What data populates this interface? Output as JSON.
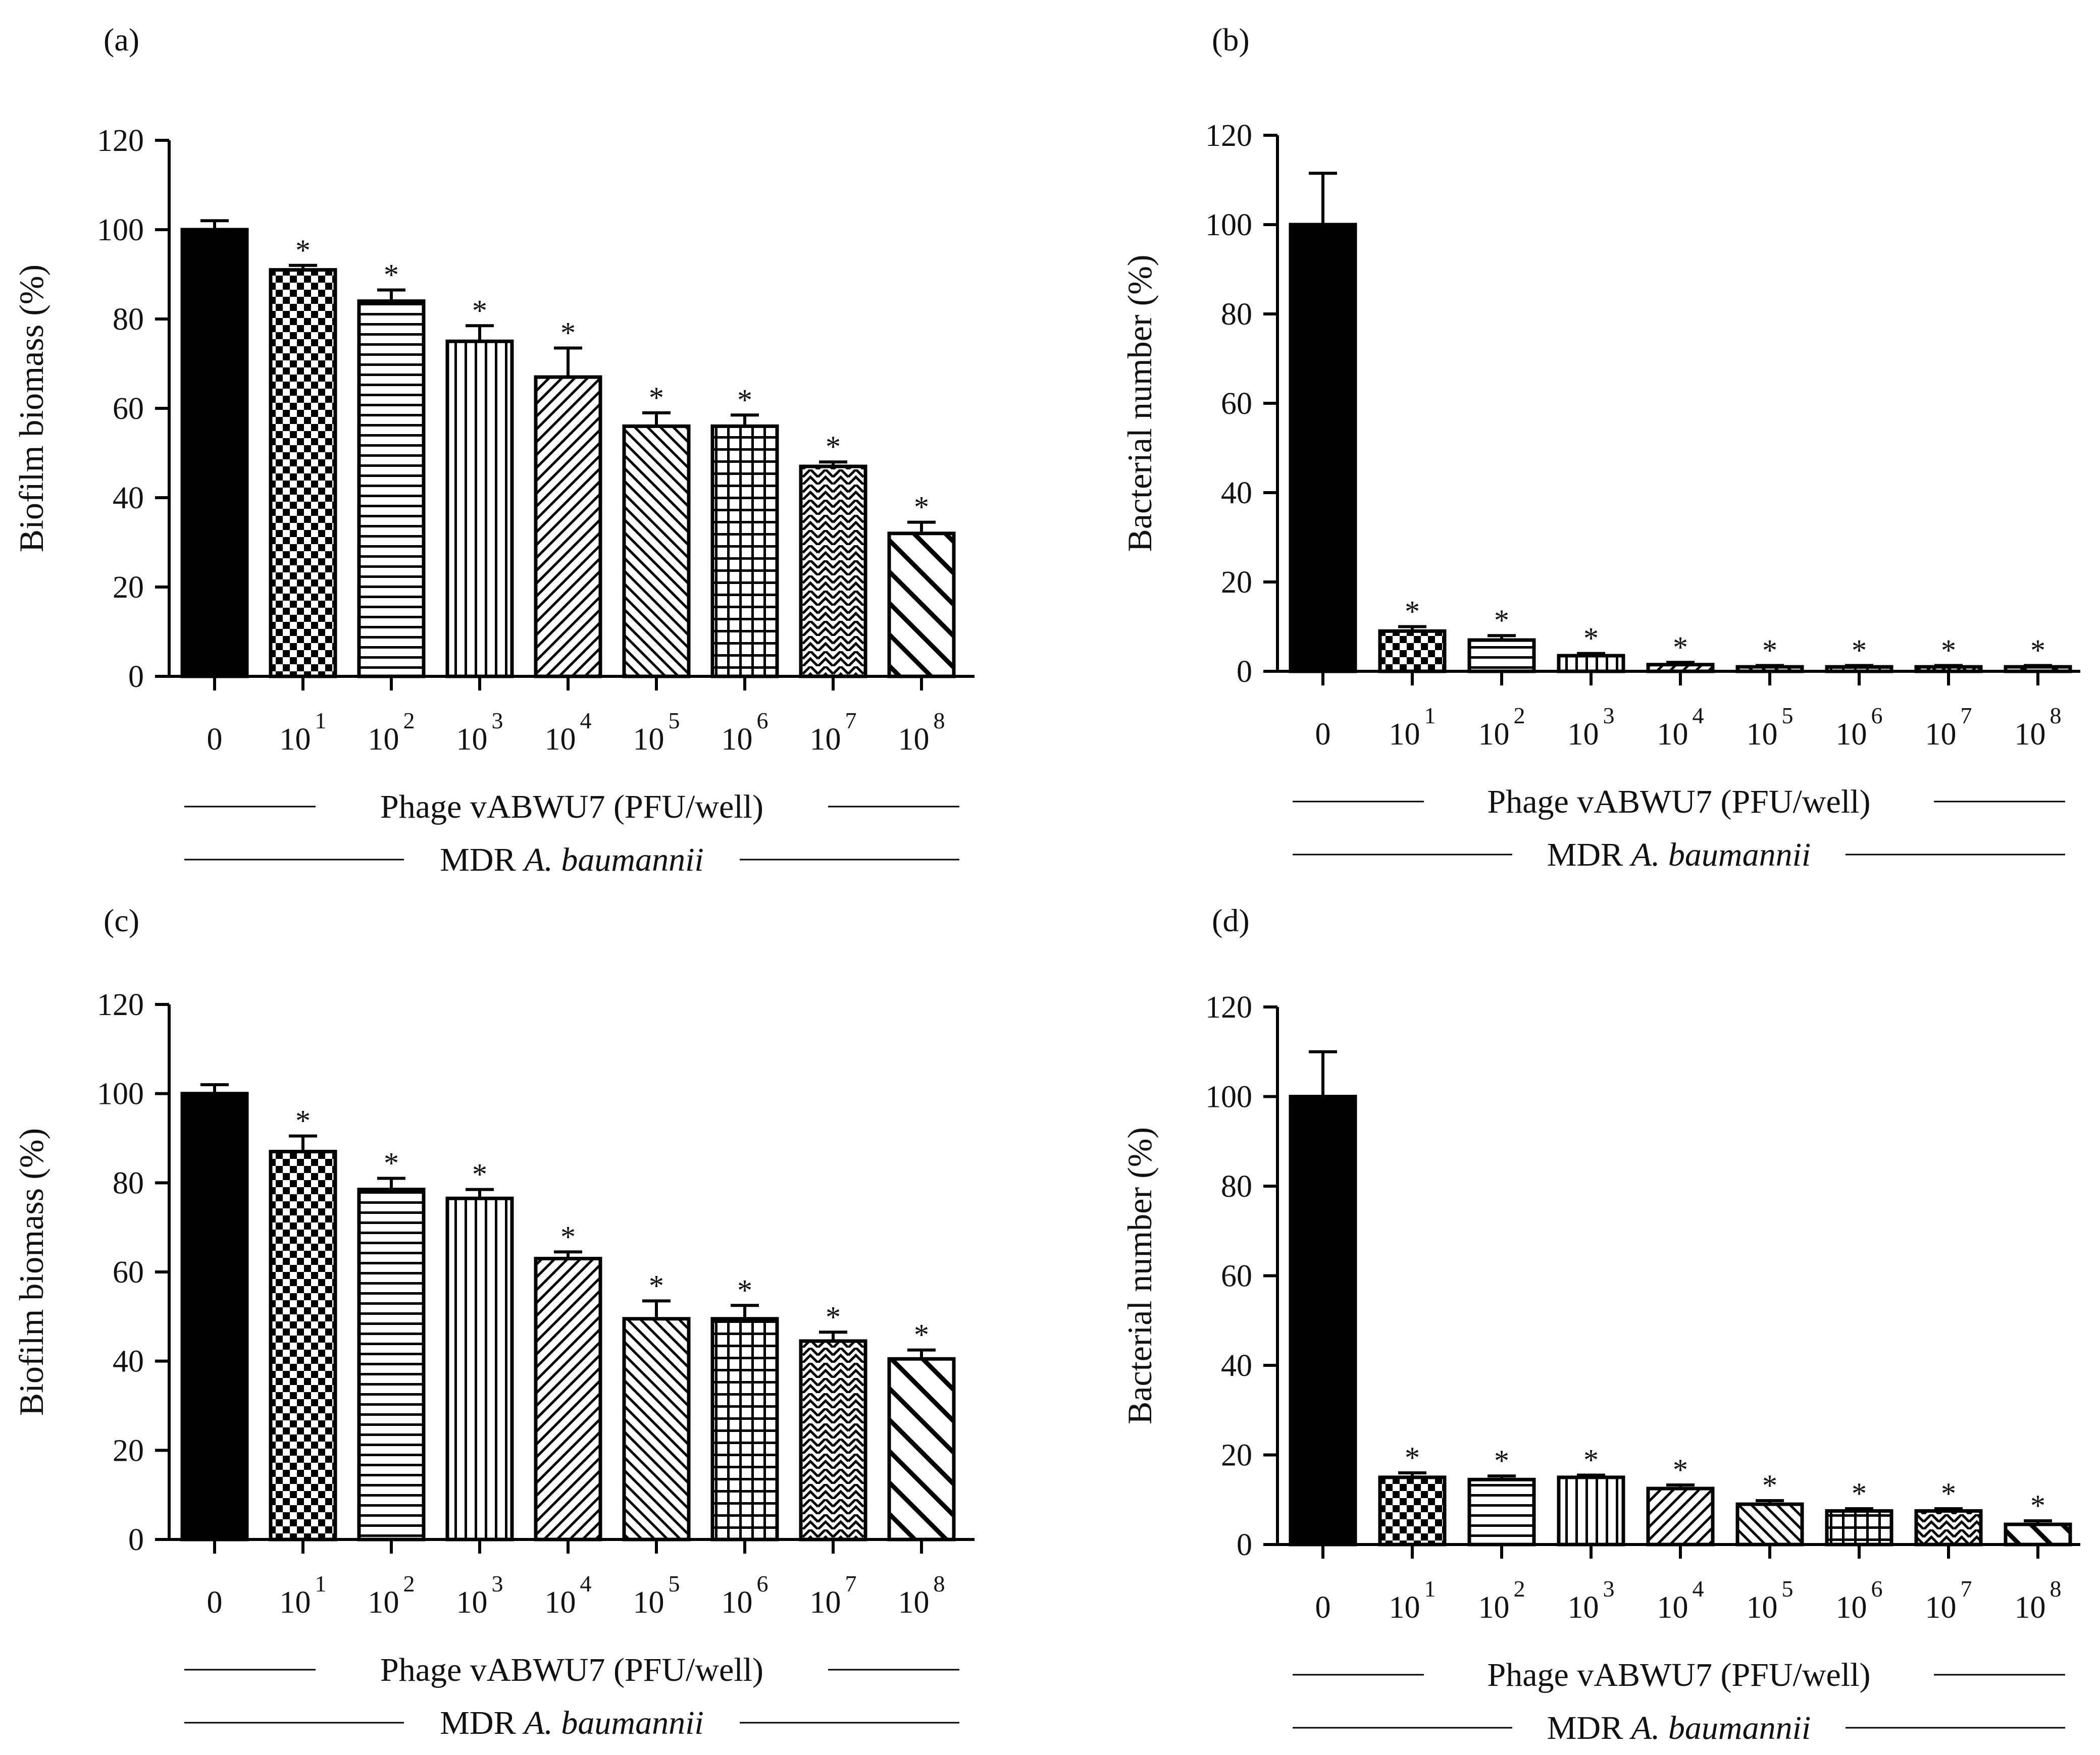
{
  "chart_data": [
    {
      "panel": "(a)",
      "type": "bar",
      "ylabel": "Biofilm biomass  (%)",
      "ylim": [
        0,
        120
      ],
      "yticks": [
        "0",
        "20",
        "40",
        "60",
        "80",
        "100",
        "120"
      ],
      "categories": [
        {
          "base": "0",
          "exp": ""
        },
        {
          "base": "10",
          "exp": "1"
        },
        {
          "base": "10",
          "exp": "2"
        },
        {
          "base": "10",
          "exp": "3"
        },
        {
          "base": "10",
          "exp": "4"
        },
        {
          "base": "10",
          "exp": "5"
        },
        {
          "base": "10",
          "exp": "6"
        },
        {
          "base": "10",
          "exp": "7"
        },
        {
          "base": "10",
          "exp": "8"
        }
      ],
      "values": [
        100,
        91,
        84,
        75,
        67,
        56,
        56,
        47,
        32
      ],
      "errors": [
        2,
        1,
        2.5,
        3.5,
        6.5,
        3,
        2.5,
        1,
        2.5
      ],
      "significance": [
        "",
        "*",
        "*",
        "*",
        "*",
        "*",
        "*",
        "*",
        "*"
      ],
      "fills": [
        "solid",
        "checker",
        "hlines",
        "vlines",
        "diag-fine",
        "diag-back",
        "grid",
        "weave",
        "diag-wide"
      ],
      "xlabel": "Phage vABWU7 (PFU/well)",
      "caption_prefix": "MDR ",
      "caption_italic": "A. baumannii"
    },
    {
      "panel": "(b)",
      "type": "bar",
      "ylabel": "Bacterial number (%)",
      "ylim": [
        0,
        120
      ],
      "yticks": [
        "0",
        "20",
        "40",
        "60",
        "80",
        "100",
        "120"
      ],
      "categories": [
        {
          "base": "0",
          "exp": ""
        },
        {
          "base": "10",
          "exp": "1"
        },
        {
          "base": "10",
          "exp": "2"
        },
        {
          "base": "10",
          "exp": "3"
        },
        {
          "base": "10",
          "exp": "4"
        },
        {
          "base": "10",
          "exp": "5"
        },
        {
          "base": "10",
          "exp": "6"
        },
        {
          "base": "10",
          "exp": "7"
        },
        {
          "base": "10",
          "exp": "8"
        }
      ],
      "values": [
        100,
        9,
        7,
        3.5,
        1.5,
        1,
        1,
        1,
        1
      ],
      "errors": [
        11.5,
        1,
        1,
        0.5,
        0.5,
        0.3,
        0.3,
        0.3,
        0.3
      ],
      "significance": [
        "",
        "*",
        "*",
        "*",
        "*",
        "*",
        "*",
        "*",
        "*"
      ],
      "fills": [
        "solid",
        "checker",
        "hlines",
        "vlines",
        "diag-fine",
        "diag-back",
        "grid",
        "weave",
        "diag-wide"
      ],
      "xlabel": "Phage vABWU7 (PFU/well)",
      "caption_prefix": "MDR ",
      "caption_italic": "A. baumannii"
    },
    {
      "panel": "(c)",
      "type": "bar",
      "ylabel": "Biofilm biomass (%)",
      "ylim": [
        0,
        120
      ],
      "yticks": [
        "0",
        "20",
        "40",
        "60",
        "80",
        "100",
        "120"
      ],
      "categories": [
        {
          "base": "0",
          "exp": ""
        },
        {
          "base": "10",
          "exp": "1"
        },
        {
          "base": "10",
          "exp": "2"
        },
        {
          "base": "10",
          "exp": "3"
        },
        {
          "base": "10",
          "exp": "4"
        },
        {
          "base": "10",
          "exp": "5"
        },
        {
          "base": "10",
          "exp": "6"
        },
        {
          "base": "10",
          "exp": "7"
        },
        {
          "base": "10",
          "exp": "8"
        }
      ],
      "values": [
        100,
        87,
        78.5,
        76.5,
        63,
        49.5,
        49.5,
        44.5,
        40.5
      ],
      "errors": [
        2,
        3.5,
        2.5,
        2,
        1.5,
        4,
        3,
        2,
        2
      ],
      "significance": [
        "",
        "*",
        "*",
        "*",
        "*",
        "*",
        "*",
        "*",
        "*"
      ],
      "fills": [
        "solid",
        "checker",
        "hlines",
        "vlines",
        "diag-fine",
        "diag-back",
        "grid",
        "weave",
        "diag-wide"
      ],
      "xlabel": "Phage vABWU7 (PFU/well)",
      "caption_prefix": "MDR ",
      "caption_italic": "A. baumannii"
    },
    {
      "panel": "(d)",
      "type": "bar",
      "ylabel": "Bacterial number (%)",
      "ylim": [
        0,
        120
      ],
      "yticks": [
        "0",
        "20",
        "40",
        "60",
        "80",
        "100",
        "120"
      ],
      "categories": [
        {
          "base": "0",
          "exp": ""
        },
        {
          "base": "10",
          "exp": "1"
        },
        {
          "base": "10",
          "exp": "2"
        },
        {
          "base": "10",
          "exp": "3"
        },
        {
          "base": "10",
          "exp": "4"
        },
        {
          "base": "10",
          "exp": "5"
        },
        {
          "base": "10",
          "exp": "6"
        },
        {
          "base": "10",
          "exp": "7"
        },
        {
          "base": "10",
          "exp": "8"
        }
      ],
      "values": [
        100,
        15,
        14.5,
        15,
        12.5,
        9,
        7.5,
        7.5,
        4.5
      ],
      "errors": [
        10,
        1,
        0.8,
        0.5,
        0.8,
        0.8,
        0.5,
        0.5,
        0.8
      ],
      "significance": [
        "",
        "*",
        "*",
        "*",
        "*",
        "*",
        "*",
        "*",
        "*"
      ],
      "fills": [
        "solid",
        "checker",
        "hlines",
        "vlines",
        "diag-fine",
        "diag-back",
        "grid",
        "weave",
        "diag-wide"
      ],
      "xlabel": "Phage vABWU7 (PFU/well)",
      "caption_prefix": "MDR ",
      "caption_italic": "A. baumannii"
    }
  ]
}
